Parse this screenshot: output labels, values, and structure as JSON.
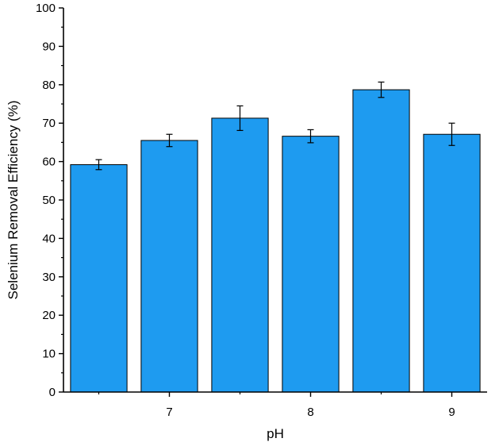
{
  "chart_data": {
    "type": "bar",
    "xlabel": "pH",
    "ylabel": "Selenium Removal Efficiency (%)",
    "ylim": [
      0,
      100
    ],
    "yticks": [
      0,
      10,
      20,
      30,
      40,
      50,
      60,
      70,
      80,
      90,
      100
    ],
    "xlim": [
      6.25,
      9.25
    ],
    "xticks": [
      7,
      8,
      9
    ],
    "x": [
      6.5,
      7.0,
      7.5,
      8.0,
      8.5,
      9.0
    ],
    "values": [
      59.2,
      65.5,
      71.3,
      66.6,
      78.7,
      67.1
    ],
    "errors": [
      1.3,
      1.6,
      3.2,
      1.7,
      2.0,
      2.9
    ],
    "bar_color": "#1E9BF0",
    "grid": false,
    "legend": "none"
  }
}
